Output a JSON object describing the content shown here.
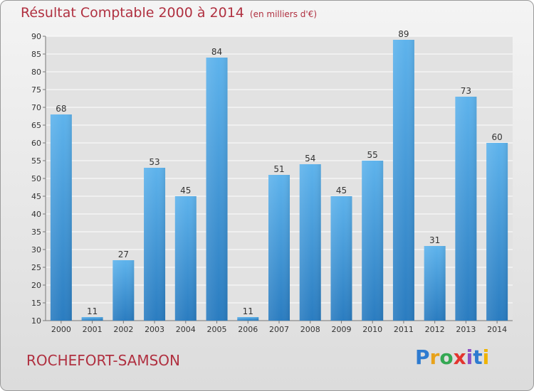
{
  "title": "Résultat Comptable 2000 à 2014",
  "subtitle": "(en milliers d'€)",
  "location": "ROCHEFORT-SAMSON",
  "logo": {
    "letters": [
      "P",
      "r",
      "o",
      "x",
      "i",
      "t",
      "i"
    ],
    "colors": [
      "#2e7bd0",
      "#e8a21a",
      "#34a853",
      "#e3342f",
      "#8c4fc4",
      "#2e7bd0",
      "#f0b400"
    ]
  },
  "chart_data": {
    "type": "bar",
    "categories": [
      "2000",
      "2001",
      "2002",
      "2003",
      "2004",
      "2005",
      "2006",
      "2007",
      "2008",
      "2009",
      "2010",
      "2011",
      "2012",
      "2013",
      "2014"
    ],
    "values": [
      68,
      11,
      27,
      53,
      45,
      84,
      11,
      51,
      54,
      45,
      55,
      89,
      31,
      73,
      60
    ],
    "data_labels": [
      "68",
      "11",
      "27",
      "53",
      "45",
      "84",
      "11",
      "51",
      "54",
      "45",
      "55",
      "89",
      "31",
      "73",
      "60"
    ],
    "ylim": [
      10,
      90
    ],
    "yticks": [
      10,
      15,
      20,
      25,
      30,
      35,
      40,
      45,
      50,
      55,
      60,
      65,
      70,
      75,
      80,
      85,
      90
    ],
    "grid": true,
    "bar_color": "#4a9fe0",
    "xlabel": "",
    "ylabel": ""
  }
}
